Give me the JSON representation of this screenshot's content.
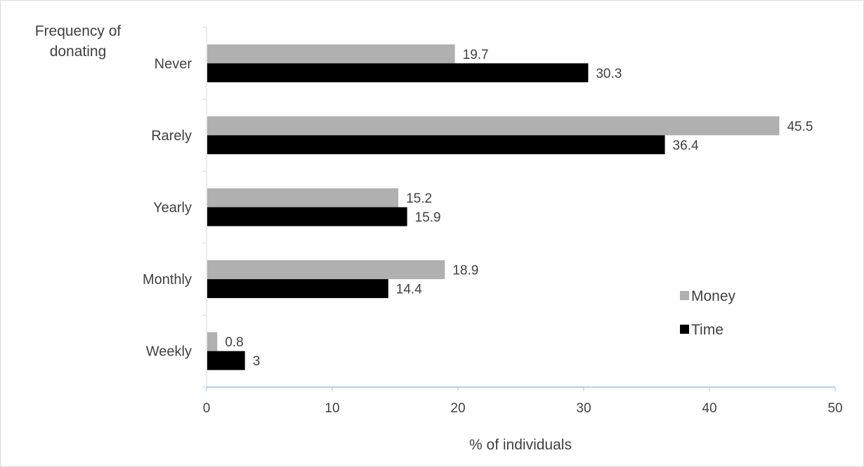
{
  "chart_data": {
    "type": "bar",
    "orientation": "horizontal",
    "categories": [
      "Never",
      "Rarely",
      "Yearly",
      "Monthly",
      "Weekly"
    ],
    "series": [
      {
        "name": "Money",
        "color": "#b0b0b0",
        "values": [
          19.7,
          45.5,
          15.2,
          18.9,
          0.8
        ]
      },
      {
        "name": "Time",
        "color": "#000000",
        "values": [
          30.3,
          36.4,
          15.9,
          14.4,
          3
        ]
      }
    ],
    "xlabel": "% of individuals",
    "ylabel_lines": [
      "Frequency of",
      "donating"
    ],
    "xlim": [
      0,
      50
    ],
    "xticks": [
      0,
      10,
      20,
      30,
      40,
      50
    ],
    "grid": false,
    "legend_position": "right",
    "axis_color": "#9dc3e6"
  }
}
